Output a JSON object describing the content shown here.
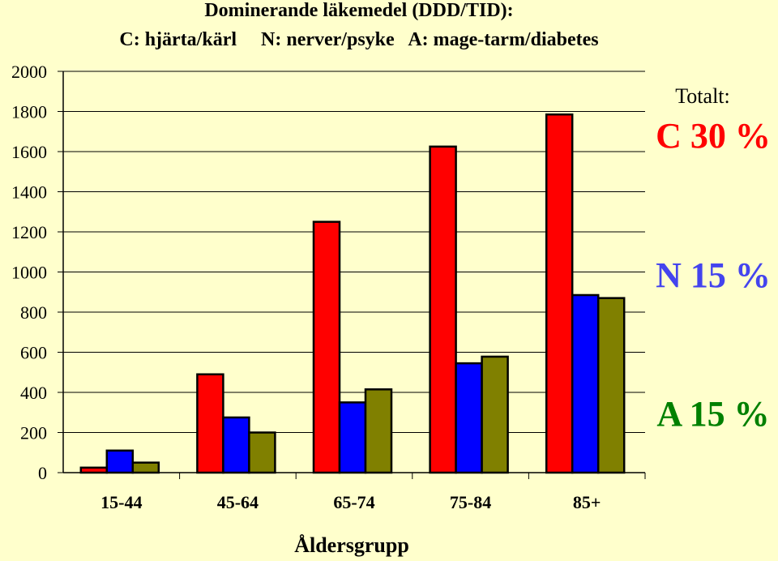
{
  "chart_data": {
    "type": "bar",
    "title": "Dominerande läkemedel (DDD/TID):",
    "subtitle": "C: hjärta/kärl     N: nerver/psyke   A: mage-tarm/diabetes",
    "xlabel": "Åldersgrupp",
    "ylabel": "",
    "ylim": [
      0,
      2000
    ],
    "yticks": [
      "0",
      "200",
      "400",
      "600",
      "800",
      "1000",
      "1200",
      "1400",
      "1600",
      "1800",
      "2000"
    ],
    "categories": [
      "15-44",
      "45-64",
      "65-74",
      "75-84",
      "85+"
    ],
    "grid": true,
    "series": [
      {
        "key": "C",
        "color": "#ff0000",
        "values": [
          25,
          490,
          1250,
          1625,
          1785
        ]
      },
      {
        "key": "N",
        "color": "#0000ff",
        "values": [
          110,
          275,
          350,
          545,
          885
        ]
      },
      {
        "key": "A",
        "color": "#808000",
        "values": [
          50,
          200,
          415,
          578,
          870
        ]
      }
    ]
  },
  "totals": {
    "heading": "Totalt:",
    "items": [
      {
        "text": "C 30 %",
        "color": "#ff0000"
      },
      {
        "text": "N 15 %",
        "color": "#4444ee"
      },
      {
        "text": "A 15 %",
        "color": "#008000"
      }
    ]
  }
}
